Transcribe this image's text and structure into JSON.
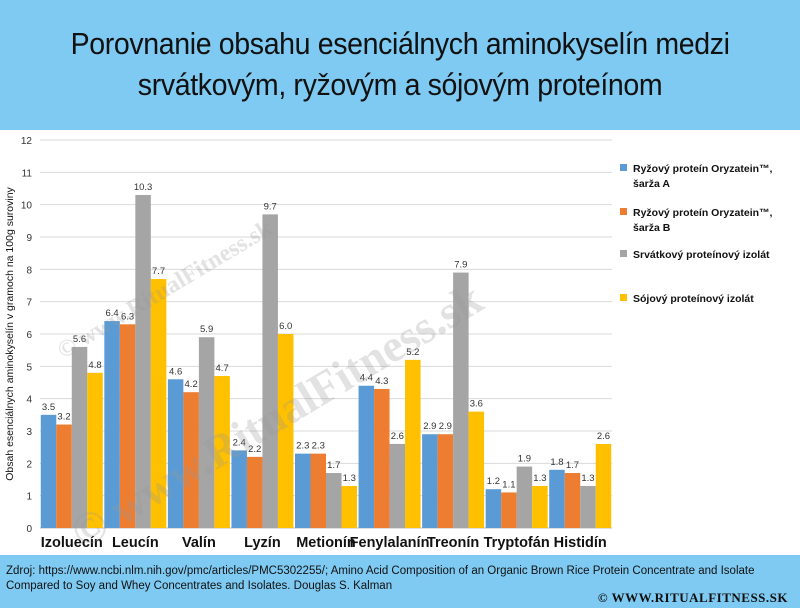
{
  "title": {
    "line1": "Porovnanie obsahu esenciálnych aminokyselín medzi",
    "line2": "srvátkovým, ryžovým a sójovým proteínom"
  },
  "chart_data": {
    "type": "bar",
    "ylabel": "Obsah esenciálnych aminokyselín v gramoch na 100g suroviny",
    "ylim": [
      0,
      12
    ],
    "yticks": [
      0,
      1,
      2,
      3,
      4,
      5,
      6,
      7,
      8,
      9,
      10,
      11,
      12
    ],
    "grid": true,
    "legend_position": "right",
    "categories": [
      "Izoluecín",
      "Leucín",
      "Valín",
      "Lyzín",
      "Metionín",
      "Fenylalanín",
      "Treonín",
      "Tryptofán",
      "Histidín"
    ],
    "series": [
      {
        "name_line1": "Ryžový proteín Oryzatein™,",
        "name_line2": "šarža A",
        "color": "#5b9bd5",
        "values": [
          3.5,
          6.4,
          4.6,
          2.4,
          2.3,
          4.4,
          2.9,
          1.2,
          1.8
        ],
        "labels": [
          "3.5",
          "6.4",
          "4.6",
          "2.4",
          "2.3",
          "4.4",
          "2.9",
          "1.2",
          "1.8"
        ]
      },
      {
        "name_line1": "Ryžový proteín Oryzatein™,",
        "name_line2": "šarža B",
        "color": "#ed7d31",
        "values": [
          3.2,
          6.3,
          4.2,
          2.2,
          2.3,
          4.3,
          2.9,
          1.1,
          1.7
        ],
        "labels": [
          "3.2",
          "6.3",
          "4.2",
          "2.2",
          "2.3",
          "4.3",
          "2.9",
          "1.1",
          "1.7"
        ]
      },
      {
        "name_line1": "Srvátkový proteínový izolát",
        "name_line2": "",
        "color": "#a5a5a5",
        "values": [
          5.6,
          10.3,
          5.9,
          9.7,
          1.7,
          2.6,
          7.9,
          1.9,
          1.3
        ],
        "labels": [
          "5.6",
          "10.3",
          "5.9",
          "9.7",
          "1.7",
          "2.6",
          "7.9",
          "1.9",
          "1.3"
        ]
      },
      {
        "name_line1": "Sójový proteínový izolát",
        "name_line2": "",
        "color": "#ffc000",
        "values": [
          4.8,
          7.7,
          4.7,
          6.0,
          1.3,
          5.2,
          3.6,
          1.3,
          2.6
        ],
        "labels": [
          "4.8",
          "7.7",
          "4.7",
          "6.0",
          "1.3",
          "5.2",
          "3.6",
          "1.3",
          "2.6"
        ]
      }
    ]
  },
  "watermark": {
    "text_large": "© www.RitualFitness.sk",
    "text_small": "© www.RitualFitness.sk"
  },
  "footer": {
    "source": "Zdroj: https://www.ncbi.nlm.nih.gov/pmc/articles/PMC5302255/; Amino Acid Composition of an Organic Brown Rice Protein Concentrate and Isolate Compared to Soy and Whey Concentrates and Isolates. Douglas S. Kalman",
    "brand": "© WWW.RITUALFITNESS.SK"
  }
}
